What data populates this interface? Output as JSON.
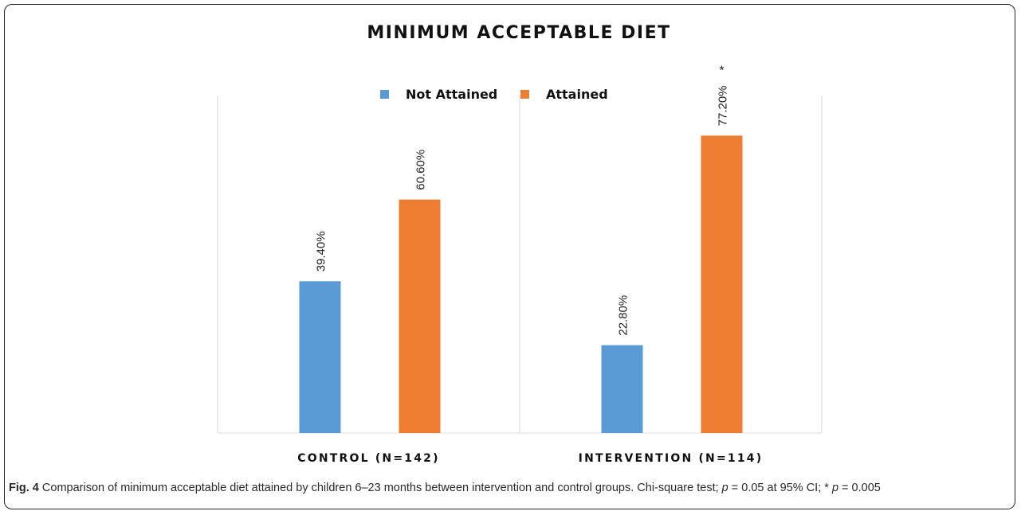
{
  "chart_data": {
    "type": "bar",
    "title": "MINIMUM ACCEPTABLE DIET",
    "categories": [
      "CONTROL (N=142)",
      "INTERVENTION (N=114)"
    ],
    "series": [
      {
        "name": "Not Attained",
        "values": [
          39.4,
          22.8
        ],
        "color": "#5b9bd5",
        "labels": [
          "39.40%",
          "22.80%"
        ]
      },
      {
        "name": "Attained",
        "values": [
          60.6,
          77.2
        ],
        "color": "#ed7d31",
        "labels": [
          "60.60%",
          "77.20%"
        ]
      }
    ],
    "annotations": [
      {
        "text": "*",
        "category": "INTERVENTION (N=114)",
        "series": "Attained"
      }
    ],
    "ylim": [
      0,
      100
    ],
    "grid": false,
    "legend_position": "top-center",
    "xlabel": "",
    "ylabel": ""
  },
  "caption": {
    "fig_label": "Fig. 4",
    "text_a": " Comparison of minimum acceptable diet attained by children 6–23 months between intervention and control groups. Chi-square test; ",
    "p1_symbol": "p",
    "text_b": " = 0.05 at 95% CI; * ",
    "p2_symbol": "p",
    "text_c": " = 0.005"
  }
}
